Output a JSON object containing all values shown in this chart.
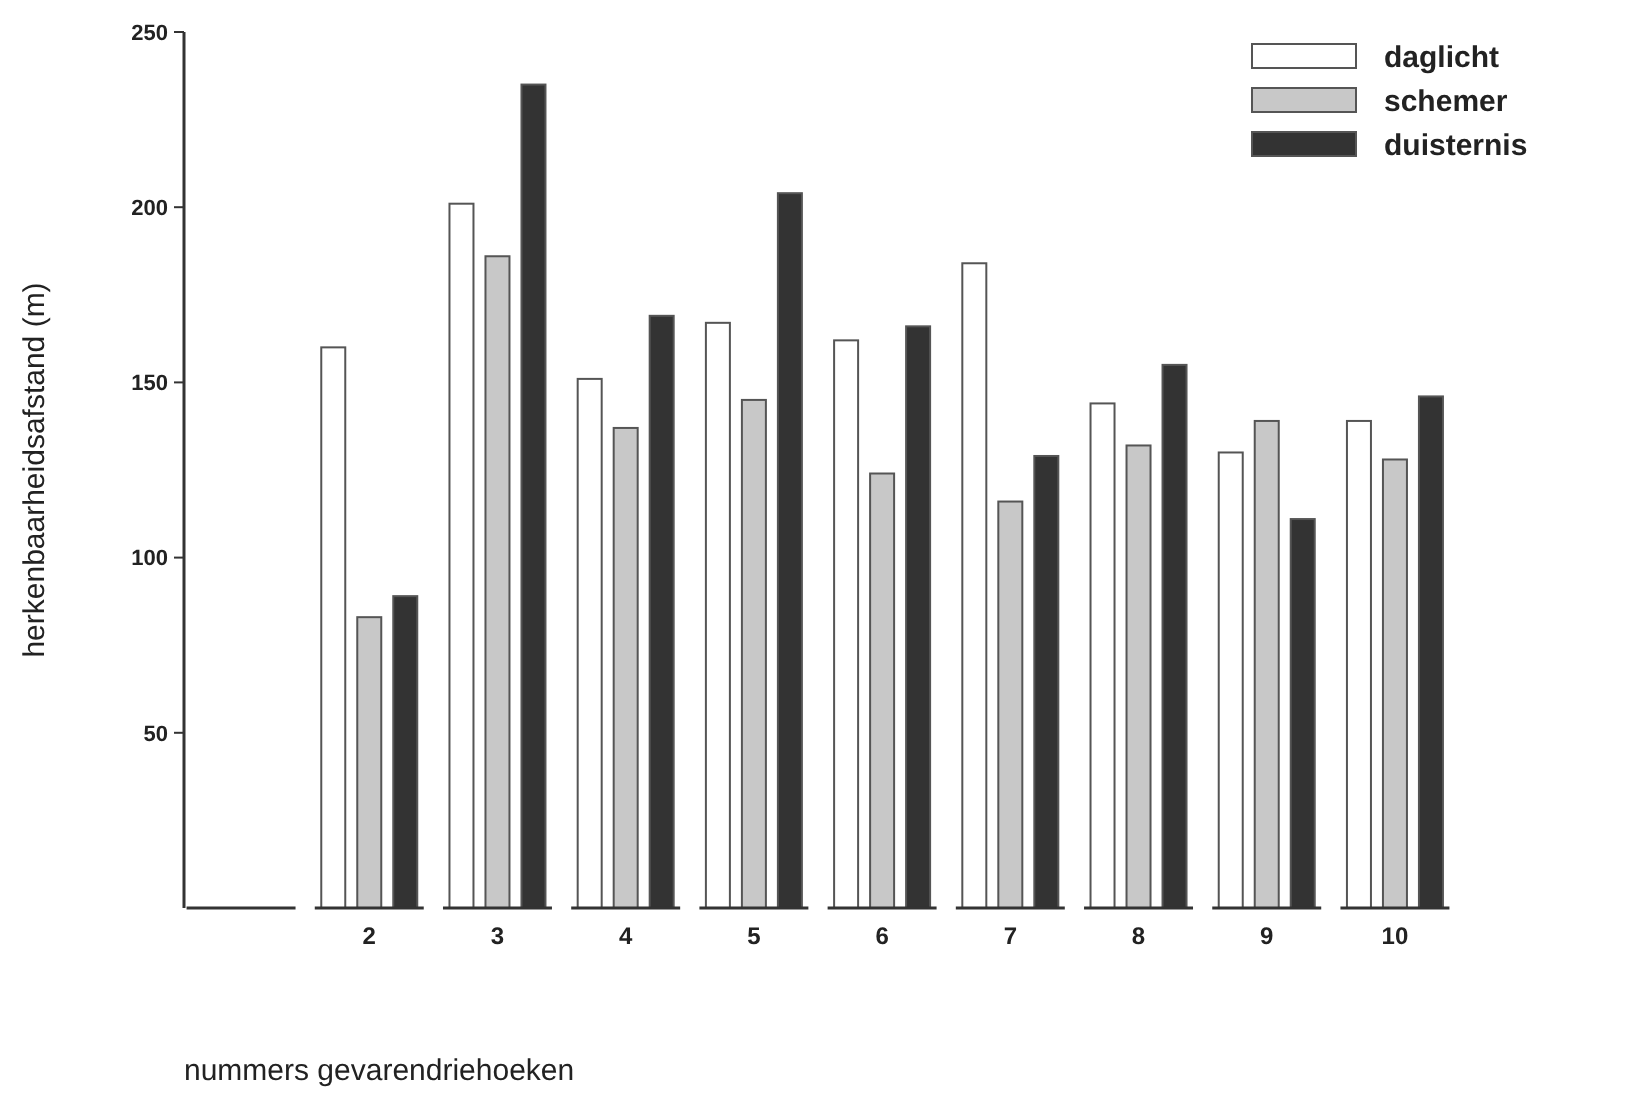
{
  "chart_data": {
    "type": "bar",
    "xlabel": "nummers gevarendriehoeken",
    "ylabel": "herkenbaarheidsafstand (m)",
    "categories": [
      null,
      "2",
      "3",
      "4",
      "5",
      "6",
      "7",
      "8",
      "9",
      "10"
    ],
    "series": [
      {
        "name": "daglicht",
        "color": "#ffffff",
        "values": [
          null,
          160,
          201,
          151,
          167,
          162,
          184,
          144,
          130,
          139
        ]
      },
      {
        "name": "schemer",
        "color": "#c8c8c8",
        "values": [
          null,
          83,
          186,
          137,
          145,
          124,
          116,
          132,
          139,
          128
        ]
      },
      {
        "name": "duisternis",
        "color": "#333333",
        "values": [
          null,
          89,
          235,
          169,
          204,
          166,
          129,
          155,
          111,
          146
        ]
      }
    ],
    "ylim": [
      0,
      250
    ],
    "yticks": [
      50,
      100,
      150,
      200,
      250
    ],
    "grid": false,
    "legend": "top right"
  }
}
